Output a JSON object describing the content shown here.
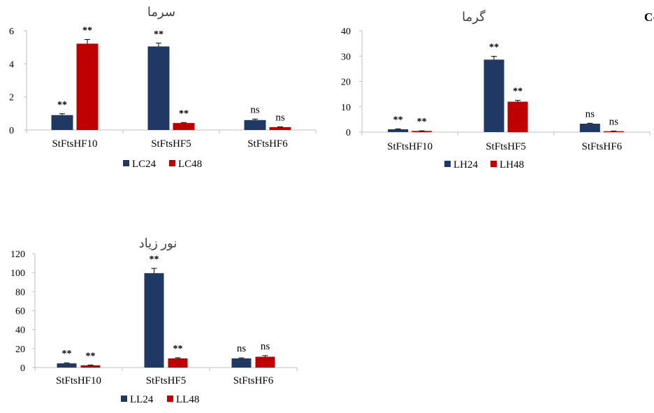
{
  "figure_label": "برگ-C",
  "colors": {
    "series1": "#1f3864",
    "series2": "#c00000",
    "axis": "#bfbfbf",
    "text": "#404040"
  },
  "chart_data": [
    {
      "type": "bar",
      "title": "سرما",
      "categories": [
        "StFtsHF10",
        "StFtsHF5",
        "StFtsHF6"
      ],
      "ylim": [
        0,
        6
      ],
      "yticks": [
        0,
        2,
        4,
        6
      ],
      "legend_position": "bottom",
      "series": [
        {
          "name": "LC24",
          "values": [
            0.9,
            5.05,
            0.6
          ],
          "errors": [
            0.08,
            0.2,
            0.06
          ],
          "labels": [
            "**",
            "**",
            "ns"
          ]
        },
        {
          "name": "LC48",
          "values": [
            5.22,
            0.42,
            0.17
          ],
          "errors": [
            0.25,
            0.03,
            0.02
          ],
          "labels": [
            "**",
            "**",
            "ns"
          ]
        }
      ]
    },
    {
      "type": "bar",
      "title": "گرما",
      "categories": [
        "StFtsHF10",
        "StFtsHF5",
        "StFtsHF6"
      ],
      "ylim": [
        0,
        40
      ],
      "yticks": [
        0,
        10,
        20,
        30,
        40
      ],
      "legend_position": "bottom",
      "series": [
        {
          "name": "LH24",
          "values": [
            1.1,
            28.6,
            3.3
          ],
          "errors": [
            0.15,
            1.3,
            0.2
          ],
          "labels": [
            "**",
            "**",
            "ns"
          ]
        },
        {
          "name": "LH48",
          "values": [
            0.45,
            12.0,
            0.35
          ],
          "errors": [
            0.05,
            0.5,
            0.04
          ],
          "labels": [
            "**",
            "**",
            "ns"
          ]
        }
      ]
    },
    {
      "type": "bar",
      "title": "نور زیاد",
      "categories": [
        "StFtsHF10",
        "StFtsHF5",
        "StFtsHF6"
      ],
      "ylim": [
        0,
        120
      ],
      "yticks": [
        0,
        20,
        40,
        60,
        80,
        100,
        120
      ],
      "legend_position": "bottom",
      "series": [
        {
          "name": "LL24",
          "values": [
            4.5,
            99.5,
            9.7
          ],
          "errors": [
            0.5,
            5.0,
            0.5
          ],
          "labels": [
            "**",
            "**",
            "ns"
          ]
        },
        {
          "name": "LL48",
          "values": [
            2.4,
            9.7,
            11.4
          ],
          "errors": [
            0.3,
            0.6,
            1.2
          ],
          "labels": [
            "**",
            "**",
            "ns"
          ]
        }
      ]
    }
  ]
}
